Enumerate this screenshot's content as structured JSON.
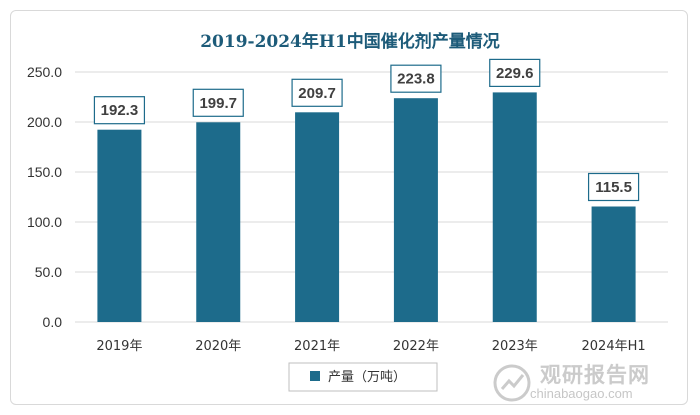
{
  "chart_data": {
    "type": "bar",
    "title": "2019-2024年H1中国催化剂产量情况",
    "categories": [
      "2019年",
      "2020年",
      "2021年",
      "2022年",
      "2023年",
      "2024年H1"
    ],
    "series": [
      {
        "name": "产量（万吨）",
        "values": [
          192.3,
          199.7,
          209.7,
          223.8,
          229.6,
          115.5
        ]
      }
    ],
    "data_labels": [
      "192.3",
      "199.7",
      "209.7",
      "223.8",
      "229.6",
      "115.5"
    ],
    "yticks": [
      "0.0",
      "50.0",
      "100.0",
      "150.0",
      "200.0",
      "250.0"
    ],
    "ylim": [
      0,
      250
    ],
    "grid": true,
    "legend_position": "bottom",
    "colors": {
      "bar": "#1d6b8b",
      "grid": "#d9d9d9",
      "label_border": "#1d6b8b",
      "title": "#1d5b79"
    }
  },
  "watermark": {
    "cn": "观研报告网",
    "en": "chinabaogao.com"
  }
}
